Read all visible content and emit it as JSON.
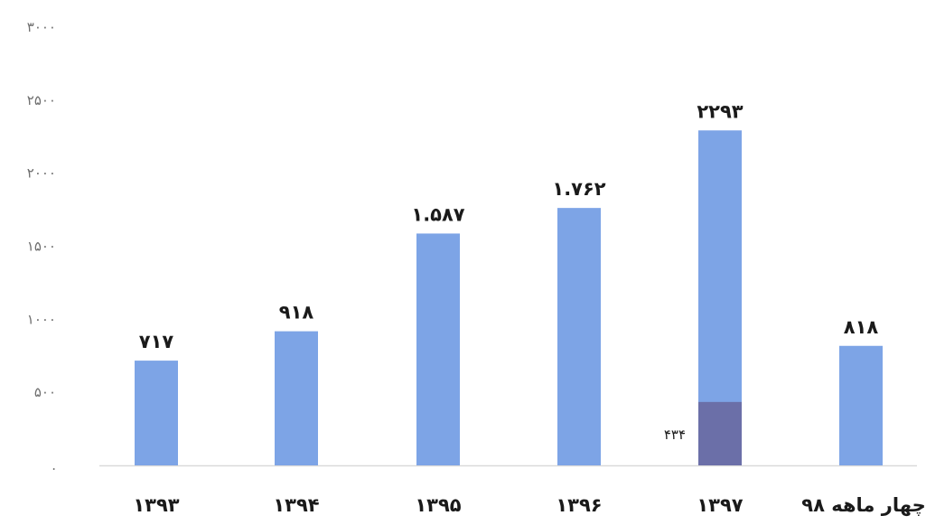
{
  "chart_data": {
    "type": "bar",
    "categories": [
      "۱۳۹۳",
      "۱۳۹۴",
      "۱۳۹۵",
      "۱۳۹۶",
      "۱۳۹۷",
      "چهار ماهه ۹۸"
    ],
    "series": [
      {
        "values": [
          717,
          918,
          1587,
          1762,
          2293,
          818
        ],
        "color": "#7da4e6"
      }
    ],
    "data_labels": [
      "۷۱۷",
      "۹۱۸",
      "۱.۵۸۷",
      "۱.۷۶۲",
      "۲۲۹۳",
      "۸۱۸"
    ],
    "highlight_segment": {
      "category": "۱۳۹۷",
      "value": 434,
      "label": "۴۳۴",
      "color": "#6b6fa8"
    },
    "y_ticks": [
      {
        "value": 0,
        "label": "."
      },
      {
        "value": 500,
        "label": "۵۰۰"
      },
      {
        "value": 1000,
        "label": "۱۰۰۰"
      },
      {
        "value": 1500,
        "label": "۱۵۰۰"
      },
      {
        "value": 2000,
        "label": "۲۰۰۰"
      },
      {
        "value": 2500,
        "label": "۲۵۰۰"
      },
      {
        "value": 3000,
        "label": "۳۰۰۰"
      }
    ],
    "ylim": [
      0,
      3000
    ],
    "grid": false,
    "baseline_color": "#d9d9d9"
  }
}
